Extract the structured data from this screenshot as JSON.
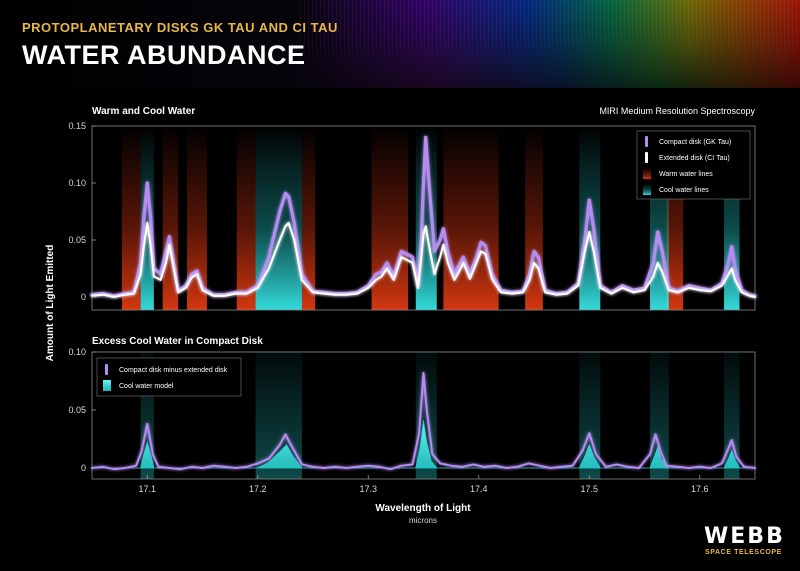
{
  "header": {
    "subtitle": "PROTOPLANETARY DISKS GK TAU AND CI TAU",
    "title": "WATER ABUNDANCE"
  },
  "logo": {
    "main": "WEBB",
    "sub": "SPACE TELESCOPE"
  },
  "colors": {
    "background": "#000000",
    "compact": "#b48cf0",
    "extended": "#ffffff",
    "warm": "#d23214",
    "cool": "#28d2d2",
    "accent": "#e8b84a"
  },
  "chart_data": [
    {
      "type": "line",
      "title": "Warm and Cool Water",
      "annotation": "MIRI Medium Resolution Spectroscopy",
      "xlabel": "Wavelength of Light",
      "xunits": "microns",
      "ylabel": "Amount of Light Emitted",
      "xlim": [
        17.05,
        17.65
      ],
      "ylim": [
        -0.01,
        0.15
      ],
      "yticks": [
        {
          "value": 0,
          "label": "0"
        },
        {
          "value": 0.05,
          "label": "0.05"
        },
        {
          "value": 0.1,
          "label": "0.10"
        },
        {
          "value": 0.15,
          "label": "0.15"
        }
      ],
      "xticks": [
        {
          "value": 17.1,
          "label": "17.1"
        },
        {
          "value": 17.2,
          "label": "17.2"
        },
        {
          "value": 17.3,
          "label": "17.3"
        },
        {
          "value": 17.4,
          "label": "17.4"
        },
        {
          "value": 17.5,
          "label": "17.5"
        },
        {
          "value": 17.6,
          "label": "17.6"
        }
      ],
      "legend_position": "top-right",
      "legend": [
        {
          "label": "Compact disk (GK Tau)",
          "color": "#b48cf0"
        },
        {
          "label": "Extended disk (CI Tau)",
          "color": "#ffffff"
        },
        {
          "label": "Warm water lines",
          "color": "#d23214"
        },
        {
          "label": "Cool water lines",
          "color": "#28d2d2"
        }
      ],
      "warm_bands": [
        [
          17.077,
          17.094
        ],
        [
          17.114,
          17.128
        ],
        [
          17.136,
          17.154
        ],
        [
          17.181,
          17.198
        ],
        [
          17.24,
          17.252
        ],
        [
          17.303,
          17.336
        ],
        [
          17.368,
          17.418
        ],
        [
          17.442,
          17.458
        ],
        [
          17.57,
          17.585
        ]
      ],
      "cool_bands": [
        [
          17.094,
          17.106
        ],
        [
          17.198,
          17.24
        ],
        [
          17.343,
          17.362
        ],
        [
          17.491,
          17.51
        ],
        [
          17.555,
          17.572
        ],
        [
          17.622,
          17.636
        ]
      ],
      "series": [
        {
          "name": "Compact disk (GK Tau)",
          "color": "#b48cf0",
          "x": [
            17.05,
            17.06,
            17.07,
            17.08,
            17.088,
            17.094,
            17.097,
            17.1,
            17.103,
            17.106,
            17.112,
            17.117,
            17.12,
            17.123,
            17.128,
            17.135,
            17.14,
            17.145,
            17.15,
            17.16,
            17.17,
            17.18,
            17.19,
            17.2,
            17.21,
            17.22,
            17.225,
            17.228,
            17.233,
            17.24,
            17.25,
            17.26,
            17.27,
            17.28,
            17.29,
            17.3,
            17.307,
            17.312,
            17.317,
            17.323,
            17.33,
            17.34,
            17.345,
            17.348,
            17.35,
            17.352,
            17.355,
            17.36,
            17.365,
            17.368,
            17.372,
            17.378,
            17.382,
            17.386,
            17.392,
            17.398,
            17.402,
            17.406,
            17.412,
            17.42,
            17.43,
            17.44,
            17.446,
            17.45,
            17.454,
            17.46,
            17.47,
            17.48,
            17.49,
            17.496,
            17.5,
            17.504,
            17.51,
            17.52,
            17.53,
            17.54,
            17.55,
            17.558,
            17.562,
            17.566,
            17.572,
            17.58,
            17.59,
            17.6,
            17.61,
            17.62,
            17.626,
            17.629,
            17.632,
            17.638,
            17.645,
            17.65
          ],
          "y": [
            0.002,
            0.003,
            0.001,
            0.003,
            0.004,
            0.03,
            0.07,
            0.1,
            0.07,
            0.025,
            0.02,
            0.04,
            0.053,
            0.035,
            0.005,
            0.01,
            0.02,
            0.023,
            0.008,
            0.002,
            0.002,
            0.004,
            0.004,
            0.01,
            0.035,
            0.075,
            0.091,
            0.088,
            0.065,
            0.02,
            0.005,
            0.004,
            0.003,
            0.003,
            0.004,
            0.01,
            0.02,
            0.022,
            0.03,
            0.018,
            0.04,
            0.035,
            0.01,
            0.05,
            0.1,
            0.14,
            0.1,
            0.04,
            0.05,
            0.06,
            0.04,
            0.02,
            0.028,
            0.035,
            0.02,
            0.035,
            0.048,
            0.045,
            0.02,
            0.006,
            0.004,
            0.005,
            0.02,
            0.04,
            0.035,
            0.006,
            0.003,
            0.004,
            0.012,
            0.05,
            0.085,
            0.06,
            0.01,
            0.004,
            0.01,
            0.006,
            0.008,
            0.03,
            0.057,
            0.04,
            0.008,
            0.005,
            0.01,
            0.008,
            0.006,
            0.012,
            0.03,
            0.044,
            0.025,
            0.006,
            0.002,
            0.001
          ]
        },
        {
          "name": "Extended disk (CI Tau)",
          "color": "#ffffff",
          "x": [
            17.05,
            17.06,
            17.07,
            17.08,
            17.088,
            17.094,
            17.097,
            17.1,
            17.103,
            17.106,
            17.112,
            17.117,
            17.12,
            17.123,
            17.128,
            17.135,
            17.14,
            17.145,
            17.15,
            17.16,
            17.17,
            17.18,
            17.19,
            17.2,
            17.21,
            17.22,
            17.225,
            17.228,
            17.233,
            17.24,
            17.25,
            17.26,
            17.27,
            17.28,
            17.29,
            17.3,
            17.307,
            17.312,
            17.317,
            17.323,
            17.33,
            17.34,
            17.345,
            17.348,
            17.35,
            17.352,
            17.355,
            17.36,
            17.365,
            17.368,
            17.372,
            17.378,
            17.382,
            17.386,
            17.392,
            17.398,
            17.402,
            17.406,
            17.412,
            17.42,
            17.43,
            17.44,
            17.446,
            17.45,
            17.454,
            17.46,
            17.47,
            17.48,
            17.49,
            17.496,
            17.5,
            17.504,
            17.51,
            17.52,
            17.53,
            17.54,
            17.55,
            17.558,
            17.562,
            17.566,
            17.572,
            17.58,
            17.59,
            17.6,
            17.61,
            17.62,
            17.626,
            17.629,
            17.632,
            17.638,
            17.645,
            17.65
          ],
          "y": [
            0.001,
            0.002,
            0.0,
            0.002,
            0.003,
            0.02,
            0.045,
            0.065,
            0.045,
            0.018,
            0.015,
            0.03,
            0.046,
            0.03,
            0.004,
            0.008,
            0.017,
            0.02,
            0.006,
            0.001,
            0.001,
            0.003,
            0.003,
            0.008,
            0.025,
            0.05,
            0.062,
            0.065,
            0.05,
            0.015,
            0.004,
            0.003,
            0.002,
            0.002,
            0.003,
            0.008,
            0.015,
            0.018,
            0.025,
            0.015,
            0.035,
            0.03,
            0.008,
            0.035,
            0.055,
            0.062,
            0.045,
            0.02,
            0.035,
            0.046,
            0.03,
            0.015,
            0.022,
            0.03,
            0.016,
            0.03,
            0.04,
            0.038,
            0.016,
            0.004,
            0.003,
            0.004,
            0.015,
            0.03,
            0.025,
            0.004,
            0.002,
            0.003,
            0.01,
            0.04,
            0.057,
            0.04,
            0.008,
            0.003,
            0.008,
            0.004,
            0.006,
            0.018,
            0.03,
            0.022,
            0.006,
            0.004,
            0.008,
            0.006,
            0.005,
            0.01,
            0.02,
            0.025,
            0.015,
            0.004,
            0.001,
            0.0
          ]
        }
      ]
    },
    {
      "type": "line",
      "title": "Excess Cool Water in Compact Disk",
      "xlabel": "Wavelength of Light",
      "xunits": "microns",
      "ylabel": "Amount of Light Emitted",
      "xlim": [
        17.05,
        17.65
      ],
      "ylim": [
        -0.01,
        0.1
      ],
      "yticks": [
        {
          "value": 0,
          "label": "0"
        },
        {
          "value": 0.05,
          "label": "0.05"
        },
        {
          "value": 0.1,
          "label": "0.10"
        }
      ],
      "xticks": [
        {
          "value": 17.1,
          "label": "17.1"
        },
        {
          "value": 17.2,
          "label": "17.2"
        },
        {
          "value": 17.3,
          "label": "17.3"
        },
        {
          "value": 17.4,
          "label": "17.4"
        },
        {
          "value": 17.5,
          "label": "17.5"
        },
        {
          "value": 17.6,
          "label": "17.6"
        }
      ],
      "legend_position": "top-left",
      "legend": [
        {
          "label": "Compact disk minus extended disk",
          "color": "#b48cf0"
        },
        {
          "label": "Cool water model",
          "color": "#28d2d2"
        }
      ],
      "cool_bands": [
        [
          17.094,
          17.106
        ],
        [
          17.198,
          17.24
        ],
        [
          17.343,
          17.362
        ],
        [
          17.491,
          17.51
        ],
        [
          17.555,
          17.572
        ],
        [
          17.622,
          17.636
        ]
      ],
      "series": [
        {
          "name": "Compact disk minus extended disk",
          "color": "#b48cf0",
          "x": [
            17.05,
            17.06,
            17.07,
            17.08,
            17.09,
            17.095,
            17.1,
            17.105,
            17.11,
            17.12,
            17.13,
            17.14,
            17.15,
            17.16,
            17.17,
            17.18,
            17.19,
            17.2,
            17.21,
            17.22,
            17.225,
            17.23,
            17.24,
            17.25,
            17.26,
            17.27,
            17.28,
            17.29,
            17.3,
            17.31,
            17.32,
            17.33,
            17.34,
            17.346,
            17.35,
            17.353,
            17.358,
            17.365,
            17.375,
            17.385,
            17.395,
            17.405,
            17.415,
            17.425,
            17.435,
            17.445,
            17.455,
            17.465,
            17.475,
            17.485,
            17.494,
            17.5,
            17.506,
            17.515,
            17.525,
            17.535,
            17.545,
            17.555,
            17.56,
            17.565,
            17.57,
            17.58,
            17.59,
            17.6,
            17.61,
            17.62,
            17.625,
            17.629,
            17.633,
            17.64,
            17.65
          ],
          "y": [
            0.0,
            0.001,
            -0.001,
            0.0,
            0.002,
            0.015,
            0.038,
            0.012,
            0.001,
            0.0,
            -0.001,
            0.001,
            0.0,
            0.002,
            0.001,
            0.0,
            0.001,
            0.004,
            0.008,
            0.02,
            0.029,
            0.02,
            0.003,
            0.001,
            0.0,
            0.001,
            0.0,
            0.001,
            0.002,
            0.001,
            -0.001,
            0.002,
            0.003,
            0.03,
            0.082,
            0.05,
            0.012,
            0.004,
            0.002,
            0.001,
            0.003,
            0.001,
            0.002,
            0.0,
            0.001,
            0.004,
            0.002,
            0.0,
            0.001,
            0.002,
            0.015,
            0.03,
            0.012,
            0.001,
            0.003,
            0.001,
            0.0,
            0.012,
            0.029,
            0.013,
            0.002,
            0.001,
            0.0,
            0.001,
            0.0,
            0.004,
            0.015,
            0.024,
            0.01,
            0.001,
            0.0
          ]
        },
        {
          "name": "Cool water model",
          "color": "#28d2d2",
          "x": [
            17.05,
            17.094,
            17.097,
            17.1,
            17.103,
            17.106,
            17.2,
            17.21,
            17.22,
            17.226,
            17.232,
            17.24,
            17.343,
            17.347,
            17.35,
            17.353,
            17.357,
            17.362,
            17.491,
            17.496,
            17.5,
            17.504,
            17.51,
            17.555,
            17.559,
            17.562,
            17.565,
            17.572,
            17.622,
            17.626,
            17.629,
            17.632,
            17.636,
            17.65
          ],
          "y": [
            0.0,
            0.0,
            0.012,
            0.022,
            0.012,
            0.0,
            0.0,
            0.005,
            0.014,
            0.02,
            0.01,
            0.0,
            0.0,
            0.018,
            0.041,
            0.022,
            0.006,
            0.0,
            0.0,
            0.01,
            0.02,
            0.01,
            0.0,
            0.0,
            0.01,
            0.018,
            0.008,
            0.0,
            0.0,
            0.008,
            0.015,
            0.007,
            0.0,
            0.0
          ]
        }
      ]
    }
  ]
}
